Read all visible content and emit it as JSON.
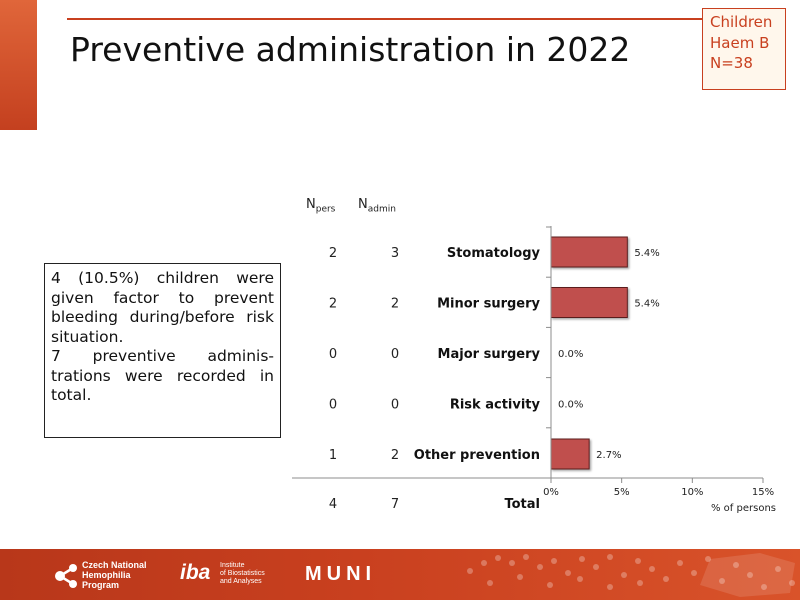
{
  "slide": {
    "title": "Preventive administration in 2022",
    "badge_lines": [
      "Children",
      "Haem B",
      "N=38"
    ]
  },
  "note": {
    "paragraph1": "4 (10.5%) children were given factor to prevent bleeding during/before risk situation.",
    "paragraph2": "7 preventive adminis-trations were recorded in total."
  },
  "columns": {
    "npers_main": "N",
    "npers_sub": "pers",
    "nadmin_main": "N",
    "nadmin_sub": "admin"
  },
  "total_row": {
    "label": "Total",
    "npers": "4",
    "nadmin": "7"
  },
  "chart_data": {
    "type": "bar",
    "orientation": "horizontal",
    "categories": [
      "Stomatology",
      "Minor surgery",
      "Major surgery",
      "Risk activity",
      "Other prevention"
    ],
    "values": [
      5.4,
      5.4,
      0.0,
      0.0,
      2.7
    ],
    "value_labels": [
      "5.4%",
      "5.4%",
      "0.0%",
      "0.0%",
      "2.7%"
    ],
    "npers": [
      "2",
      "2",
      "0",
      "0",
      "1"
    ],
    "nadmin": [
      "3",
      "2",
      "0",
      "0",
      "2"
    ],
    "xlabel": "% of persons",
    "xlim": [
      0,
      15
    ],
    "xticks": [
      0,
      5,
      10,
      15
    ],
    "xtick_labels": [
      "0%",
      "5%",
      "10%",
      "15%"
    ],
    "grid": false,
    "bar_color": "#c0504d"
  },
  "footer": {
    "logo1_lines": [
      "Czech National",
      "Hemophilia",
      "Program"
    ],
    "logo2_main": "iba",
    "logo2_lines": [
      "Institute",
      "of Biostatistics",
      "and Analyses"
    ],
    "logo3": "MUNI"
  }
}
